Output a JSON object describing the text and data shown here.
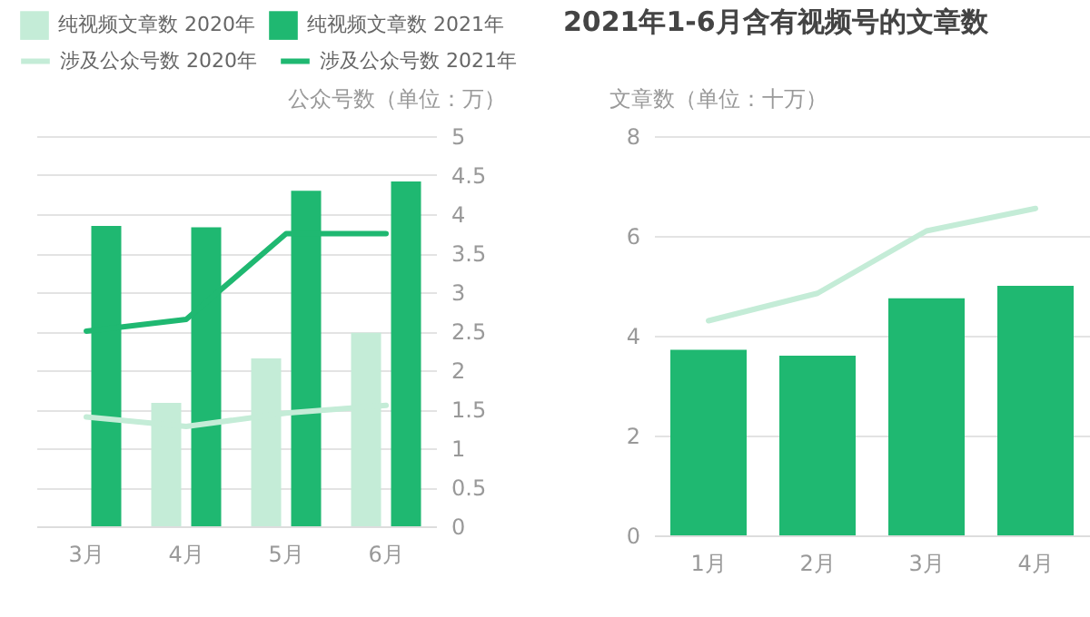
{
  "chart_data": [
    {
      "type": "bar",
      "categories": [
        "3月",
        "4月",
        "5月",
        "6月"
      ],
      "series": [
        {
          "name": "纯视频文章数 2020年",
          "color": "#c4ecd7",
          "values": [
            null,
            1.58,
            2.15,
            2.48
          ]
        },
        {
          "name": "纯视频文章数 2021年",
          "color": "#1fb871",
          "values": [
            3.85,
            3.83,
            4.3,
            4.42
          ]
        },
        {
          "name": "涉及公众号数 2020年",
          "type": "line",
          "color": "#c4ecd7",
          "values": [
            1.4,
            1.28,
            1.45,
            1.55
          ]
        },
        {
          "name": "涉及公众号数 2021年",
          "type": "line",
          "color": "#1fb871",
          "values": [
            2.5,
            2.65,
            3.75,
            3.75
          ]
        }
      ],
      "ylabel": "公众号数（单位：万）",
      "ylim": [
        0,
        5
      ],
      "yticks": [
        0,
        0.5,
        1,
        1.5,
        2,
        2.5,
        3,
        3.5,
        4,
        4.5,
        5
      ],
      "grid": "y",
      "legend": "top"
    },
    {
      "type": "bar",
      "title": "2021年1-6月含有视频号的文章数",
      "categories": [
        "1月",
        "2月",
        "3月",
        "4月"
      ],
      "series": [
        {
          "color": "#1fb871",
          "values": [
            3.72,
            3.6,
            4.75,
            5.0
          ]
        },
        {
          "type": "line",
          "color": "#c4ecd7",
          "values": [
            4.3,
            4.85,
            6.1,
            6.55
          ]
        }
      ],
      "ylabel": "文章数（单位：十万）",
      "ylim": [
        0,
        8
      ],
      "yticks": [
        0,
        2,
        4,
        6,
        8
      ],
      "grid": "y"
    }
  ]
}
